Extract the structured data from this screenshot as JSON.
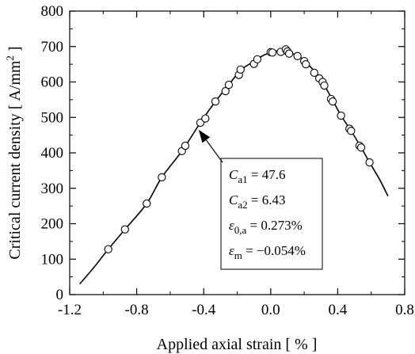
{
  "chart_data": {
    "type": "scatter",
    "xlabel": "Applied axial strain [ % ]",
    "ylabel_main": "Critical current density [ A/mm",
    "ylabel_sup": "2",
    "ylabel_end": " ]",
    "xlim": [
      -1.2,
      0.8
    ],
    "ylim": [
      0,
      800
    ],
    "xticks": [
      -1.2,
      -0.8,
      -0.4,
      0.0,
      0.4,
      0.8
    ],
    "xtick_labels": [
      "-1.2",
      "-0.8",
      "-0.4",
      "0.0",
      "0.4",
      "0.8"
    ],
    "yticks": [
      0,
      100,
      200,
      300,
      400,
      500,
      600,
      700,
      800
    ],
    "ytick_labels": [
      "0",
      "100",
      "200",
      "300",
      "400",
      "500",
      "600",
      "700",
      "800"
    ],
    "grid": false,
    "series": [
      {
        "kind": "markers",
        "marker": "open-circle",
        "points": [
          [
            -0.97,
            128
          ],
          [
            -0.87,
            184
          ],
          [
            -0.74,
            257
          ],
          [
            -0.65,
            331
          ],
          [
            -0.53,
            405
          ],
          [
            -0.51,
            420
          ],
          [
            -0.42,
            485
          ],
          [
            -0.39,
            497
          ],
          [
            -0.33,
            545
          ],
          [
            -0.27,
            574
          ],
          [
            -0.25,
            592
          ],
          [
            -0.19,
            620
          ],
          [
            -0.18,
            635
          ],
          [
            -0.1,
            651
          ],
          [
            -0.08,
            664
          ],
          [
            0.0,
            684
          ],
          [
            0.01,
            683
          ],
          [
            0.06,
            685
          ],
          [
            0.09,
            692
          ],
          [
            0.1,
            686
          ],
          [
            0.11,
            680
          ],
          [
            0.16,
            673
          ],
          [
            0.2,
            659
          ],
          [
            0.21,
            650
          ],
          [
            0.26,
            626
          ],
          [
            0.29,
            610
          ],
          [
            0.31,
            600
          ],
          [
            0.32,
            590
          ],
          [
            0.36,
            552
          ],
          [
            0.37,
            545
          ],
          [
            0.42,
            505
          ],
          [
            0.47,
            468
          ],
          [
            0.48,
            462
          ],
          [
            0.53,
            420
          ],
          [
            0.54,
            415
          ],
          [
            0.59,
            373
          ]
        ]
      },
      {
        "kind": "fit-line",
        "points": [
          [
            -1.14,
            30
          ],
          [
            -1.05,
            80
          ],
          [
            -0.97,
            128
          ],
          [
            -0.87,
            184
          ],
          [
            -0.74,
            257
          ],
          [
            -0.65,
            331
          ],
          [
            -0.53,
            405
          ],
          [
            -0.42,
            485
          ],
          [
            -0.33,
            545
          ],
          [
            -0.25,
            592
          ],
          [
            -0.18,
            633
          ],
          [
            -0.1,
            658
          ],
          [
            -0.04,
            676
          ],
          [
            0.02,
            686
          ],
          [
            0.07,
            688
          ],
          [
            0.12,
            682
          ],
          [
            0.18,
            668
          ],
          [
            0.25,
            636
          ],
          [
            0.31,
            599
          ],
          [
            0.37,
            548
          ],
          [
            0.42,
            505
          ],
          [
            0.48,
            462
          ],
          [
            0.54,
            415
          ],
          [
            0.59,
            373
          ],
          [
            0.65,
            325
          ],
          [
            0.7,
            278
          ]
        ]
      }
    ],
    "annotation": {
      "arrow_to": [
        -0.43,
        465
      ],
      "lines": [
        {
          "sym": "C",
          "sub": "a1",
          "rest": " = 47.6"
        },
        {
          "sym": "C",
          "sub": "a2",
          "rest": " = 6.43"
        },
        {
          "sym": "ε",
          "sub": "0,a",
          "rest": " = 0.273%"
        },
        {
          "sym": "ε",
          "sub": "m",
          "rest": " = −0.054%"
        }
      ]
    }
  }
}
